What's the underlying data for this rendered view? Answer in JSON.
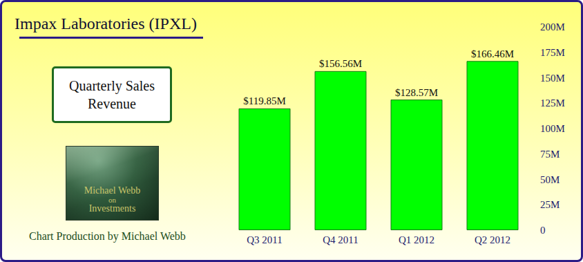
{
  "chart_data": {
    "type": "bar",
    "title": "Impax Laboratories (IPXL)",
    "subtitle": "Quarterly Sales Revenue",
    "annotations": [
      "Michael Webb",
      "on",
      "Investments",
      "Chart Production by Michael Webb"
    ],
    "categories": [
      "Q3 2011",
      "Q4 2011",
      "Q1 2012",
      "Q2 2012"
    ],
    "values": [
      119.85,
      156.56,
      128.57,
      166.46
    ],
    "value_labels": [
      "$119.85M",
      "$156.56M",
      "$128.57M",
      "$166.46M"
    ],
    "color": "#00ff00",
    "ylim": [
      0,
      200
    ],
    "yticks": [
      0,
      {
        "value": 25,
        "label": "25M"
      },
      {
        "value": 50,
        "label": "50M"
      },
      {
        "value": 75,
        "label": "75M"
      },
      {
        "value": 100,
        "label": "100M"
      },
      {
        "value": 125,
        "label": "125M"
      },
      {
        "value": 150,
        "label": "150M"
      },
      {
        "value": 175,
        "label": "175M"
      },
      {
        "value": 200,
        "label": "200M"
      }
    ],
    "grid": false,
    "data_labels": true
  }
}
